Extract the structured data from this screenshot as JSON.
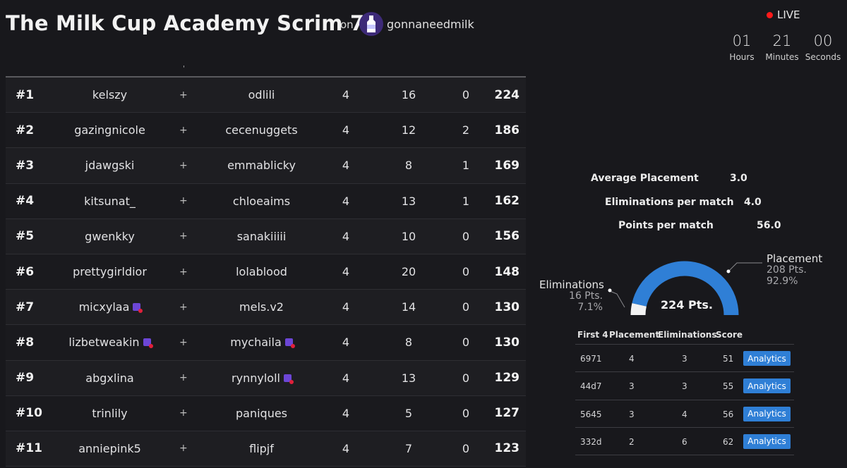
{
  "header": {
    "title": "The Milk Cup Academy Scrim 7",
    "on_label": "on",
    "org_name": "gonnaneedmilk"
  },
  "live": {
    "label": "LIVE",
    "hours": "01",
    "hours_label": "Hours",
    "minutes": "21",
    "minutes_label": "Minutes",
    "seconds": "00",
    "seconds_label": "Seconds"
  },
  "leaderboard": {
    "header_mark": "'",
    "rows": [
      {
        "rank": "#1",
        "p1": "kelszy",
        "p2": "odlili",
        "a": "4",
        "b": "16",
        "c": "0",
        "score": "224",
        "p1_twitch": false,
        "p2_twitch": false
      },
      {
        "rank": "#2",
        "p1": "gazingnicole",
        "p2": "cecenuggets",
        "a": "4",
        "b": "12",
        "c": "2",
        "score": "186",
        "p1_twitch": false,
        "p2_twitch": false
      },
      {
        "rank": "#3",
        "p1": "jdawgski",
        "p2": "emmablicky",
        "a": "4",
        "b": "8",
        "c": "1",
        "score": "169",
        "p1_twitch": false,
        "p2_twitch": false
      },
      {
        "rank": "#4",
        "p1": "kitsunat_",
        "p2": "chloeaims",
        "a": "4",
        "b": "13",
        "c": "1",
        "score": "162",
        "p1_twitch": false,
        "p2_twitch": false
      },
      {
        "rank": "#5",
        "p1": "gwenkky",
        "p2": "sanakiiiii",
        "a": "4",
        "b": "10",
        "c": "0",
        "score": "156",
        "p1_twitch": false,
        "p2_twitch": false
      },
      {
        "rank": "#6",
        "p1": "prettygirldior",
        "p2": "lolablood",
        "a": "4",
        "b": "20",
        "c": "0",
        "score": "148",
        "p1_twitch": false,
        "p2_twitch": false
      },
      {
        "rank": "#7",
        "p1": "micxylaa",
        "p2": "mels.v2",
        "a": "4",
        "b": "14",
        "c": "0",
        "score": "130",
        "p1_twitch": true,
        "p2_twitch": false
      },
      {
        "rank": "#8",
        "p1": "lizbetweakin",
        "p2": "mychaila",
        "a": "4",
        "b": "8",
        "c": "0",
        "score": "130",
        "p1_twitch": true,
        "p2_twitch": true
      },
      {
        "rank": "#9",
        "p1": "abgxlina",
        "p2": "rynnyloll",
        "a": "4",
        "b": "13",
        "c": "0",
        "score": "129",
        "p1_twitch": false,
        "p2_twitch": true
      },
      {
        "rank": "#10",
        "p1": "trinlily",
        "p2": "paniques",
        "a": "4",
        "b": "5",
        "c": "0",
        "score": "127",
        "p1_twitch": false,
        "p2_twitch": false
      },
      {
        "rank": "#11",
        "p1": "anniepink5",
        "p2": "flipjf",
        "a": "4",
        "b": "7",
        "c": "0",
        "score": "123",
        "p1_twitch": false,
        "p2_twitch": false
      }
    ]
  },
  "stats": {
    "avg_placement_label": "Average Placement",
    "avg_placement": "3.0",
    "elims_per_match_label": "Eliminations per match",
    "elims_per_match": "4.0",
    "points_per_match_label": "Points per match",
    "points_per_match": "56.0"
  },
  "gauge": {
    "center_label": "224 Pts.",
    "placement_label": "Placement",
    "placement_pts": "208 Pts.",
    "placement_pct": "92.9%",
    "elims_label": "Eliminations",
    "elims_pts": "16 Pts.",
    "elims_pct": "7.1%",
    "placement_fraction": 0.929,
    "placement_color": "#2f7fd6",
    "elims_color": "#f2f2f2"
  },
  "matches": {
    "headers": [
      "First 4",
      "Placement",
      "Eliminations",
      "Score"
    ],
    "button_label": "Analytics",
    "rows": [
      {
        "id": "6971",
        "placement": "4",
        "elims": "3",
        "score": "51"
      },
      {
        "id": "44d7",
        "placement": "3",
        "elims": "3",
        "score": "55"
      },
      {
        "id": "5645",
        "placement": "3",
        "elims": "4",
        "score": "56"
      },
      {
        "id": "332d",
        "placement": "2",
        "elims": "6",
        "score": "62"
      }
    ]
  }
}
